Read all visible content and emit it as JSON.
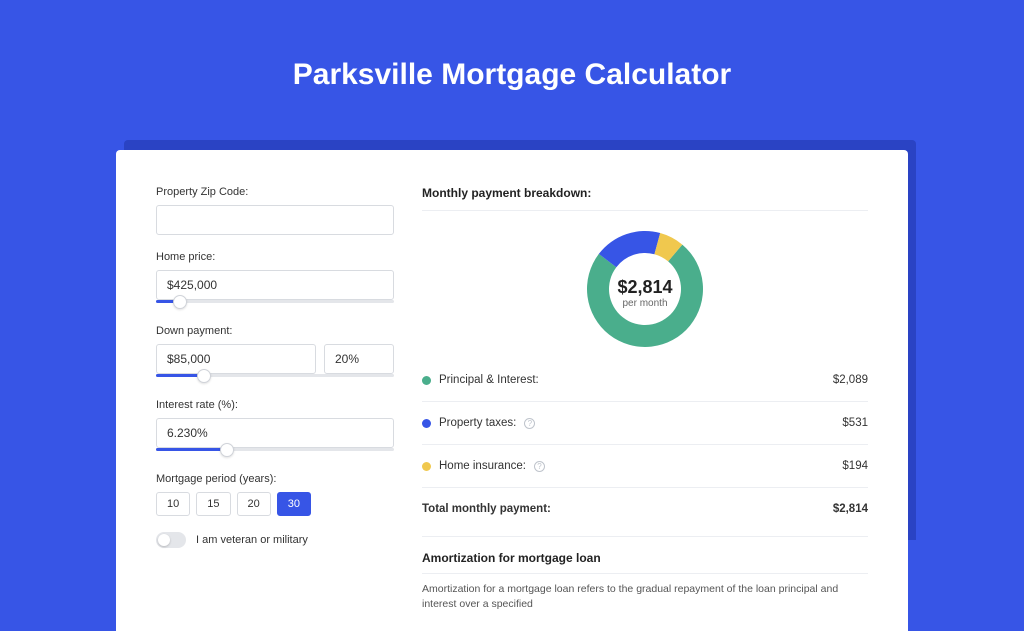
{
  "page": {
    "title": "Parksville Mortgage Calculator",
    "background_color": "#3755e6"
  },
  "form": {
    "zip": {
      "label": "Property Zip Code:",
      "value": ""
    },
    "home_price": {
      "label": "Home price:",
      "value": "$425,000",
      "slider_pct": 10
    },
    "down_payment": {
      "label": "Down payment:",
      "amount": "$85,000",
      "pct": "20%",
      "slider_pct": 20
    },
    "interest_rate": {
      "label": "Interest rate (%):",
      "value": "6.230%",
      "slider_pct": 30
    },
    "period": {
      "label": "Mortgage period (years):",
      "options": [
        "10",
        "15",
        "20",
        "30"
      ],
      "selected": "30"
    },
    "veteran": {
      "label": "I am veteran or military",
      "on": false
    }
  },
  "breakdown": {
    "title": "Monthly payment breakdown:",
    "center_amount": "$2,814",
    "center_sub": "per month",
    "donut": {
      "slices": [
        {
          "key": "principal_interest",
          "value": 2089,
          "color": "#4aae8c"
        },
        {
          "key": "property_taxes",
          "value": 531,
          "color": "#3755e6"
        },
        {
          "key": "home_insurance",
          "value": 194,
          "color": "#f0c84e"
        }
      ],
      "inner_radius": 36,
      "outer_radius": 58,
      "start_angle_deg": -50
    },
    "rows": [
      {
        "label": "Principal & Interest:",
        "value": "$2,089",
        "color": "#4aae8c",
        "info": false
      },
      {
        "label": "Property taxes:",
        "value": "$531",
        "color": "#3755e6",
        "info": true
      },
      {
        "label": "Home insurance:",
        "value": "$194",
        "color": "#f0c84e",
        "info": true
      }
    ],
    "total": {
      "label": "Total monthly payment:",
      "value": "$2,814"
    }
  },
  "amortization": {
    "title": "Amortization for mortgage loan",
    "text": "Amortization for a mortgage loan refers to the gradual repayment of the loan principal and interest over a specified"
  }
}
